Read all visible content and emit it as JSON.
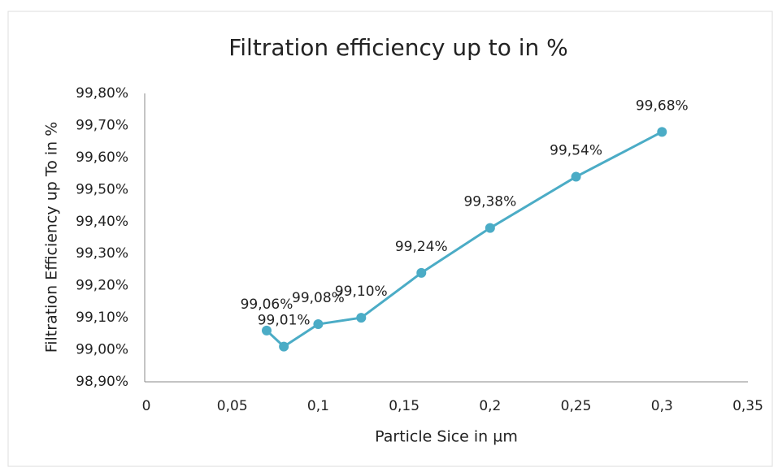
{
  "chart_data": {
    "type": "line",
    "title": "Filtration efficiency up to in %",
    "x_label": "Particle Sice in µm",
    "y_label": "Filtration Efficiency up To in %",
    "x": [
      0.07,
      0.08,
      0.1,
      0.125,
      0.16,
      0.2,
      0.25,
      0.3
    ],
    "values": [
      99.06,
      99.01,
      99.08,
      99.1,
      99.24,
      99.38,
      99.54,
      99.68
    ],
    "value_labels": [
      "99,06%",
      "99,01%",
      "99,08%",
      "99,10%",
      "99,24%",
      "99,38%",
      "99,54%",
      "99,68%"
    ],
    "color": "#4bacc6",
    "xlim": [
      0,
      0.35
    ],
    "xticks": [
      0,
      {
        "value": 0.05,
        "label": "0,05"
      },
      {
        "value": 0.1,
        "label": "0,1"
      },
      {
        "value": 0.15,
        "label": "0,15"
      },
      {
        "value": 0.2,
        "label": "0,2"
      },
      {
        "value": 0.25,
        "label": "0,25"
      },
      {
        "value": 0.3,
        "label": "0,3"
      },
      {
        "value": 0.35,
        "label": "0,35"
      }
    ],
    "ylim": [
      98.9,
      99.8
    ],
    "yticks": [
      {
        "value": 98.9,
        "label": "98,90%"
      },
      {
        "value": 99.0,
        "label": "99,00%"
      },
      {
        "value": 99.1,
        "label": "99,10%"
      },
      {
        "value": 99.2,
        "label": "99,20%"
      },
      {
        "value": 99.3,
        "label": "99,30%"
      },
      {
        "value": 99.4,
        "label": "99,40%"
      },
      {
        "value": 99.5,
        "label": "99,50%"
      },
      {
        "value": 99.6,
        "label": "99,60%"
      },
      {
        "value": 99.7,
        "label": "99,70%"
      },
      {
        "value": 99.8,
        "label": "99,80%"
      }
    ],
    "grid": false
  }
}
